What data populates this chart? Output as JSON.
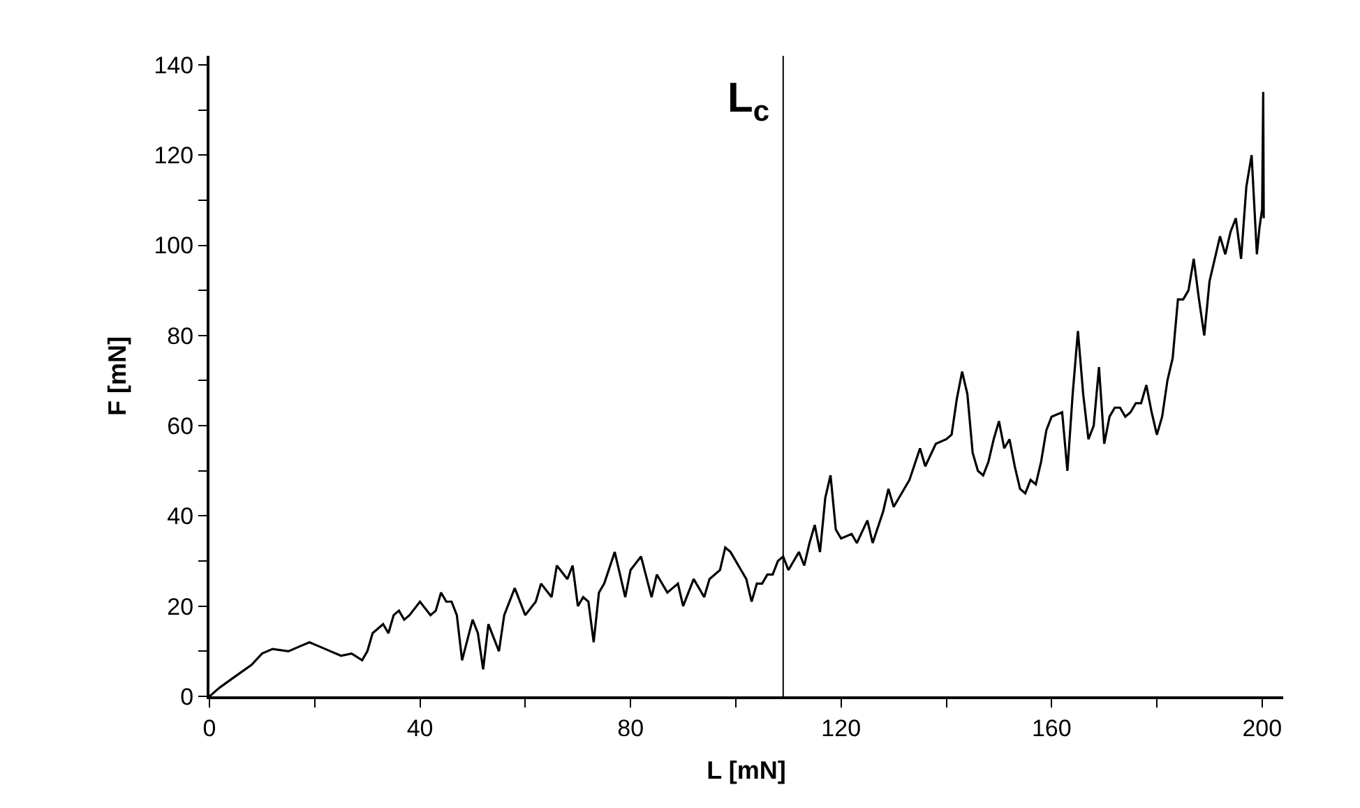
{
  "chart_data": {
    "type": "line",
    "xlabel": "L [mN]",
    "ylabel": "F [mN]",
    "x": [
      0,
      2,
      5,
      8,
      10,
      12,
      15,
      17,
      19,
      21,
      23,
      25,
      27,
      29,
      30,
      31,
      33,
      34,
      35,
      36,
      37,
      38,
      40,
      42,
      43,
      44,
      45,
      46,
      47,
      48,
      50,
      51,
      52,
      53,
      55,
      56,
      58,
      60,
      62,
      63,
      65,
      66,
      68,
      69,
      70,
      71,
      72,
      73,
      74,
      75,
      77,
      78,
      79,
      80,
      82,
      84,
      85,
      87,
      88,
      89,
      90,
      92,
      94,
      95,
      97,
      98,
      99,
      101,
      102,
      103,
      104,
      105,
      106,
      107,
      108,
      109,
      110,
      111,
      112,
      113,
      114,
      115,
      116,
      117,
      118,
      119,
      120,
      122,
      123,
      125,
      126,
      128,
      129,
      130,
      131,
      133,
      135,
      136,
      138,
      140,
      141,
      142,
      143,
      144,
      145,
      146,
      147,
      148,
      149,
      150,
      151,
      152,
      153,
      154,
      155,
      156,
      157,
      158,
      159,
      160,
      162,
      163,
      164,
      165,
      166,
      167,
      168,
      169,
      170,
      171,
      172,
      173,
      174,
      175,
      176,
      177,
      178,
      179,
      180,
      181,
      182,
      183,
      184,
      185,
      186,
      187,
      188,
      189,
      190,
      191,
      192,
      193,
      194,
      195,
      196,
      197,
      198,
      199,
      199.5,
      200,
      200.2,
      200.3
    ],
    "series": [
      {
        "color": "#000000",
        "values": [
          0,
          2,
          4.5,
          7,
          9.5,
          10.5,
          10,
          11,
          12,
          11,
          10,
          9,
          9.5,
          8,
          10,
          14,
          16,
          14,
          18,
          19,
          17,
          18,
          21,
          18,
          19,
          23,
          21,
          21,
          18,
          8,
          17,
          14,
          6,
          16,
          10,
          18,
          24,
          18,
          21,
          25,
          22,
          29,
          26,
          29,
          20,
          22,
          21,
          12,
          23,
          25,
          32,
          27,
          22,
          28,
          31,
          22,
          27,
          23,
          24,
          25,
          20,
          26,
          22,
          26,
          28,
          33,
          32,
          28,
          26,
          21,
          25,
          25,
          27,
          27,
          30,
          31,
          28,
          30,
          32,
          29,
          34,
          38,
          32,
          44,
          49,
          37,
          35,
          36,
          34,
          39,
          34,
          41,
          46,
          42,
          44,
          48,
          55,
          51,
          56,
          57,
          58,
          66,
          72,
          67,
          54,
          50,
          49,
          52,
          57,
          61,
          55,
          57,
          51,
          46,
          45,
          48,
          47,
          52,
          59,
          62,
          63,
          50,
          67,
          81,
          67,
          57,
          60,
          73,
          56,
          62,
          64,
          64,
          62,
          63,
          65,
          65,
          69,
          63,
          58,
          62,
          70,
          75,
          88,
          88,
          90,
          97,
          88,
          80,
          92,
          97,
          102,
          98,
          103,
          106,
          97,
          113,
          120,
          98,
          104,
          108,
          134,
          106
        ]
      }
    ],
    "xlim": [
      0,
      204
    ],
    "ylim": [
      0,
      142
    ],
    "xticks": [
      0,
      {
        "value": 20,
        "label": null
      },
      40,
      {
        "value": 60,
        "label": null
      },
      80,
      {
        "value": 100,
        "label": null
      },
      120,
      {
        "value": 140,
        "label": null
      },
      160,
      {
        "value": 180,
        "label": null
      },
      200
    ],
    "yticks": [
      0,
      {
        "value": 10,
        "label": null
      },
      20,
      {
        "value": 30,
        "label": null
      },
      40,
      {
        "value": 50,
        "label": null
      },
      60,
      {
        "value": 70,
        "label": null
      },
      80,
      {
        "value": 90,
        "label": null
      },
      100,
      {
        "value": 110,
        "label": null
      },
      120,
      {
        "value": 130,
        "label": null
      },
      140
    ],
    "ref_lines": [
      {
        "axis": "x",
        "value": 109,
        "label": "L$_{c}$",
        "color": "#000000"
      }
    ],
    "marker": "none",
    "line_style": "solid"
  }
}
